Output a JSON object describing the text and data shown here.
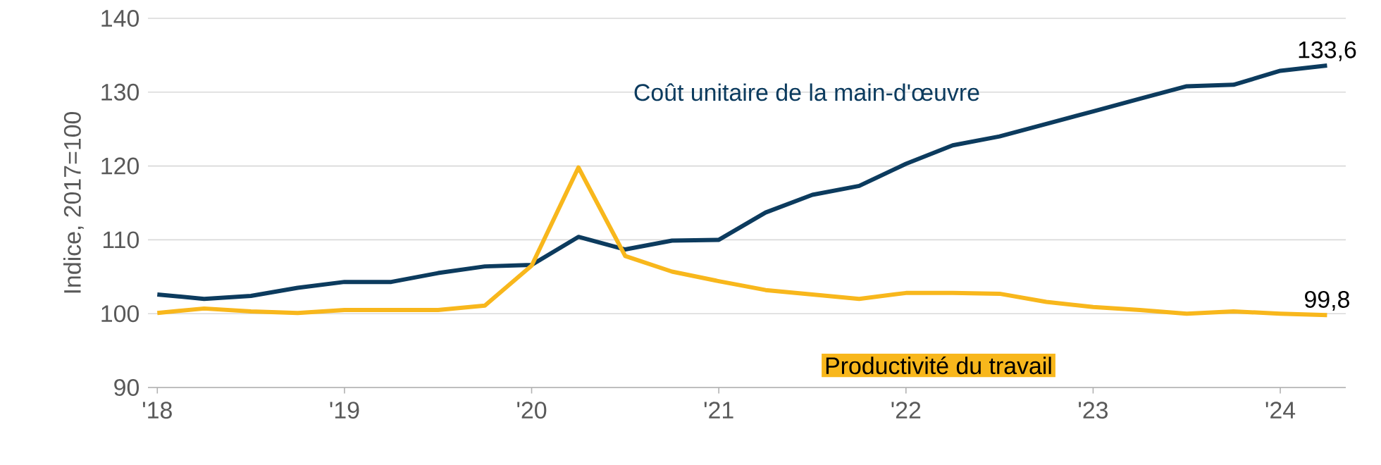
{
  "chart_data": {
    "type": "line",
    "ylabel": "Indice, 2017=100",
    "x": [
      2018,
      2018.25,
      2018.5,
      2018.75,
      2019,
      2019.25,
      2019.5,
      2019.75,
      2020,
      2020.25,
      2020.5,
      2020.75,
      2021,
      2021.25,
      2021.5,
      2021.75,
      2022,
      2022.25,
      2022.5,
      2022.75,
      2023,
      2023.25,
      2023.5,
      2023.75,
      2024,
      2024.25
    ],
    "series": [
      {
        "name": "Coût unitaire de la main-d'œuvre",
        "color": "#0c3b5e",
        "values": [
          102.6,
          102.0,
          102.4,
          103.5,
          104.3,
          104.3,
          105.5,
          106.4,
          106.6,
          110.4,
          108.7,
          109.9,
          110.0,
          113.7,
          116.1,
          117.3,
          120.3,
          122.8,
          124.0,
          125.7,
          127.4,
          129.1,
          130.8,
          131.0,
          132.9,
          133.6
        ],
        "value_labels": [
          null,
          null,
          null,
          null,
          null,
          null,
          null,
          null,
          null,
          null,
          null,
          null,
          null,
          null,
          null,
          null,
          null,
          null,
          null,
          null,
          null,
          null,
          null,
          null,
          null,
          "133,6"
        ]
      },
      {
        "name": "Productivité du travail",
        "color": "#f8b71c",
        "values": [
          100.1,
          100.7,
          100.3,
          100.1,
          100.5,
          100.5,
          100.5,
          101.1,
          106.5,
          119.8,
          107.8,
          105.7,
          104.4,
          103.2,
          102.6,
          102.0,
          102.8,
          102.8,
          102.7,
          101.6,
          100.9,
          100.5,
          100.0,
          100.3,
          100.0,
          99.8
        ],
        "value_labels": [
          null,
          null,
          null,
          null,
          null,
          null,
          null,
          null,
          null,
          null,
          null,
          null,
          null,
          null,
          null,
          null,
          null,
          null,
          null,
          null,
          null,
          null,
          null,
          null,
          null,
          "99,8"
        ]
      }
    ],
    "xlim": [
      2017.95,
      2024.35
    ],
    "xticks": [
      {
        "value": 2018,
        "label": "'18"
      },
      {
        "value": 2019,
        "label": "'19"
      },
      {
        "value": 2020,
        "label": "'20"
      },
      {
        "value": 2021,
        "label": "'21"
      },
      {
        "value": 2022,
        "label": "'22"
      },
      {
        "value": 2023,
        "label": "'23"
      },
      {
        "value": 2024,
        "label": "'24"
      }
    ],
    "ylim": [
      90,
      140
    ],
    "yticks": [
      90,
      100,
      110,
      120,
      130,
      140
    ],
    "grid": "y",
    "legend": false
  }
}
